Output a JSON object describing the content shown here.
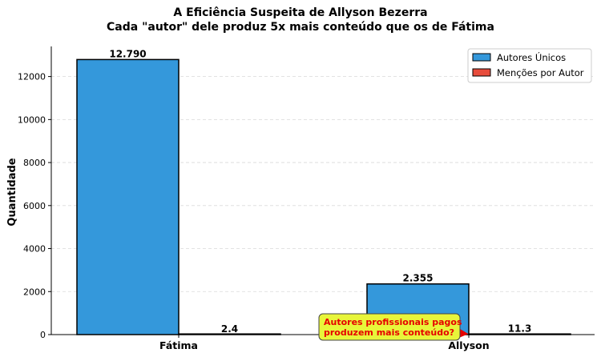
{
  "chart_data": {
    "type": "bar",
    "title": "A Eficiência Suspeita de Allyson Bezerra",
    "subtitle": "Cada \"autor\" dele produz 5x mais conteúdo que os de Fátima",
    "xlabel": "",
    "ylabel": "Quantidade",
    "categories": [
      "Fátima",
      "Allyson"
    ],
    "series": [
      {
        "name": "Autores Únicos",
        "color": "#3498db",
        "values": [
          12790,
          2355
        ],
        "value_labels": [
          "12.790",
          "2.355"
        ]
      },
      {
        "name": "Menções por Autor",
        "color": "#e74c3c",
        "values": [
          2.4,
          11.3
        ],
        "value_labels": [
          "2.4",
          "11.3"
        ]
      }
    ],
    "ylim": [
      0,
      13400
    ],
    "yticks": [
      0,
      2000,
      4000,
      6000,
      8000,
      10000,
      12000
    ],
    "grid": "horizontal-dashed",
    "legend": "top-right",
    "annotation": {
      "text_lines": [
        "Autores profissionais pagos",
        "produzem mais conteúdo?"
      ],
      "text_color": "#e60000",
      "box_color": "#e8f53a",
      "points_to": "Allyson / Menções por Autor"
    }
  }
}
